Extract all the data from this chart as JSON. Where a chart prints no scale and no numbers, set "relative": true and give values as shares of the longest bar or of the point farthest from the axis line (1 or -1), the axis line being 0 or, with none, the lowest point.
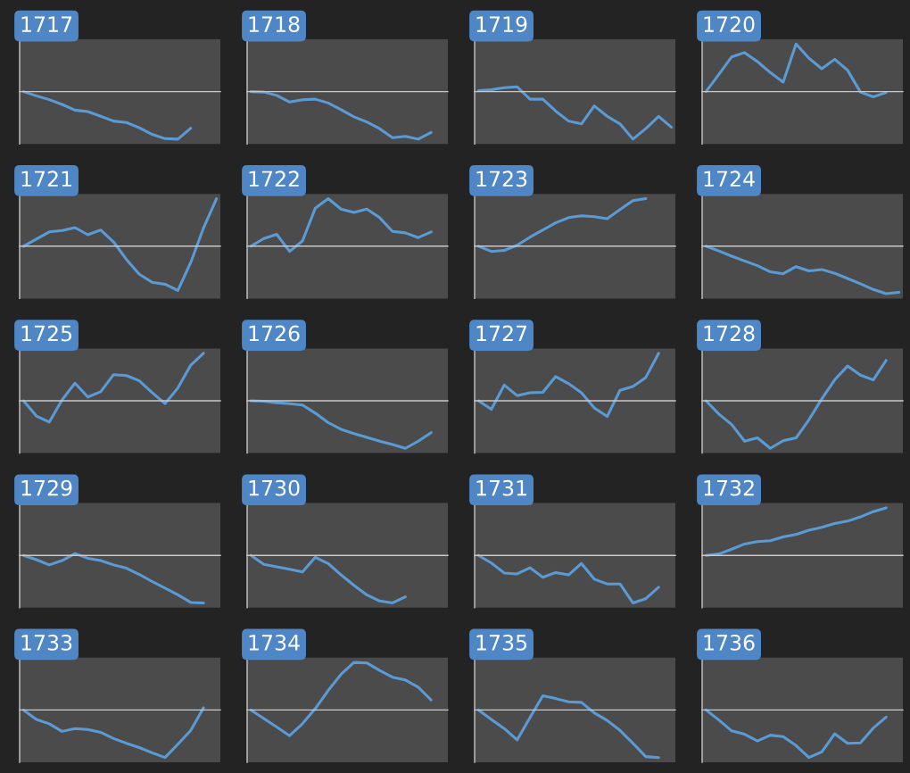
{
  "chart_data": [
    {
      "type": "line",
      "title": "1717",
      "categories": [
        null,
        null,
        null,
        null,
        null,
        null,
        null,
        null,
        null,
        null,
        null,
        null,
        null,
        null,
        null,
        null
      ],
      "relative": true,
      "series": [
        {
          "color": "#5b9bd5",
          "values": [
            0,
            -0.09,
            -0.17,
            -0.27,
            -0.39,
            -0.42,
            -0.52,
            -0.62,
            -0.65,
            -0.76,
            -0.9,
            -0.99,
            -1,
            -0.77,
            null,
            null
          ]
        }
      ]
    },
    {
      "type": "line",
      "title": "1718",
      "categories": [
        null,
        null,
        null,
        null,
        null,
        null,
        null,
        null,
        null,
        null,
        null,
        null,
        null,
        null,
        null,
        null
      ],
      "relative": true,
      "series": [
        {
          "color": "#5b9bd5",
          "values": [
            0,
            -0.01,
            -0.08,
            -0.22,
            -0.17,
            -0.16,
            -0.24,
            -0.38,
            -0.53,
            -0.64,
            -0.78,
            -0.97,
            -0.94,
            -1,
            -0.86,
            null
          ]
        }
      ]
    },
    {
      "type": "line",
      "title": "1719",
      "categories": [
        null,
        null,
        null,
        null,
        null,
        null,
        null,
        null,
        null,
        null,
        null,
        null,
        null,
        null,
        null,
        null
      ],
      "relative": true,
      "series": [
        {
          "color": "#5b9bd5",
          "values": [
            0.02,
            0.04,
            0.08,
            0.1,
            -0.16,
            -0.16,
            -0.41,
            -0.62,
            -0.68,
            -0.3,
            -0.52,
            -0.68,
            -1,
            -0.78,
            -0.52,
            -0.75
          ]
        }
      ]
    },
    {
      "type": "line",
      "title": "1720",
      "categories": [
        null,
        null,
        null,
        null,
        null,
        null,
        null,
        null,
        null,
        null,
        null,
        null,
        null,
        null,
        null,
        null
      ],
      "relative": true,
      "series": [
        {
          "color": "#5b9bd5",
          "values": [
            0,
            0.36,
            0.73,
            0.82,
            0.63,
            0.4,
            0.2,
            1,
            0.7,
            0.48,
            0.68,
            0.45,
            -0.01,
            -0.11,
            -0.02,
            null
          ]
        }
      ]
    },
    {
      "type": "line",
      "title": "1721",
      "categories": [
        null,
        null,
        null,
        null,
        null,
        null,
        null,
        null,
        null,
        null,
        null,
        null,
        null,
        null,
        null,
        null
      ],
      "relative": true,
      "series": [
        {
          "color": "#5b9bd5",
          "values": [
            0,
            0.15,
            0.3,
            0.33,
            0.39,
            0.24,
            0.34,
            0.09,
            -0.28,
            -0.59,
            -0.76,
            -0.8,
            -0.93,
            -0.34,
            0.39,
            1
          ]
        }
      ]
    },
    {
      "type": "line",
      "title": "1722",
      "categories": [
        null,
        null,
        null,
        null,
        null,
        null,
        null,
        null,
        null,
        null,
        null,
        null,
        null,
        null,
        null,
        null
      ],
      "relative": true,
      "series": [
        {
          "color": "#5b9bd5",
          "values": [
            0,
            0.16,
            0.25,
            -0.11,
            0.11,
            0.8,
            1,
            0.78,
            0.71,
            0.78,
            0.6,
            0.31,
            0.28,
            0.18,
            0.3,
            null
          ]
        }
      ]
    },
    {
      "type": "line",
      "title": "1723",
      "categories": [
        null,
        null,
        null,
        null,
        null,
        null,
        null,
        null,
        null,
        null,
        null,
        null,
        null,
        null,
        null,
        null
      ],
      "relative": true,
      "series": [
        {
          "color": "#5b9bd5",
          "values": [
            0,
            -0.11,
            -0.09,
            0.02,
            0.19,
            0.34,
            0.49,
            0.6,
            0.64,
            0.62,
            0.58,
            0.77,
            0.96,
            1,
            null,
            null
          ]
        }
      ]
    },
    {
      "type": "line",
      "title": "1724",
      "categories": [
        null,
        null,
        null,
        null,
        null,
        null,
        null,
        null,
        null,
        null,
        null,
        null,
        null,
        null,
        null,
        null
      ],
      "relative": true,
      "series": [
        {
          "color": "#5b9bd5",
          "values": [
            0,
            -0.1,
            -0.21,
            -0.31,
            -0.41,
            -0.54,
            -0.58,
            -0.43,
            -0.52,
            -0.49,
            -0.57,
            -0.68,
            -0.79,
            -0.91,
            -1,
            -0.97
          ]
        }
      ]
    },
    {
      "type": "line",
      "title": "1725",
      "categories": [
        null,
        null,
        null,
        null,
        null,
        null,
        null,
        null,
        null,
        null,
        null,
        null,
        null,
        null,
        null,
        null
      ],
      "relative": true,
      "series": [
        {
          "color": "#5b9bd5",
          "values": [
            0,
            -0.32,
            -0.45,
            0.02,
            0.37,
            0.08,
            0.19,
            0.55,
            0.53,
            0.42,
            0.17,
            -0.06,
            0.27,
            0.75,
            1,
            null
          ]
        }
      ]
    },
    {
      "type": "line",
      "title": "1726",
      "categories": [
        null,
        null,
        null,
        null,
        null,
        null,
        null,
        null,
        null,
        null,
        null,
        null,
        null,
        null,
        null,
        null
      ],
      "relative": true,
      "series": [
        {
          "color": "#5b9bd5",
          "values": [
            0,
            -0.01,
            -0.04,
            -0.06,
            -0.09,
            -0.26,
            -0.46,
            -0.6,
            -0.69,
            -0.77,
            -0.85,
            -0.92,
            -1,
            -0.85,
            -0.67,
            null
          ]
        }
      ]
    },
    {
      "type": "line",
      "title": "1727",
      "categories": [
        null,
        null,
        null,
        null,
        null,
        null,
        null,
        null,
        null,
        null,
        null,
        null,
        null,
        null,
        null,
        null
      ],
      "relative": true,
      "series": [
        {
          "color": "#5b9bd5",
          "values": [
            0,
            -0.18,
            0.33,
            0.11,
            0.17,
            0.18,
            0.51,
            0.36,
            0.17,
            -0.15,
            -0.33,
            0.22,
            0.3,
            0.49,
            1,
            null
          ]
        }
      ]
    },
    {
      "type": "line",
      "title": "1728",
      "categories": [
        null,
        null,
        null,
        null,
        null,
        null,
        null,
        null,
        null,
        null,
        null,
        null,
        null,
        null,
        null,
        null
      ],
      "relative": true,
      "series": [
        {
          "color": "#5b9bd5",
          "values": [
            0,
            -0.28,
            -0.5,
            -0.85,
            -0.78,
            -1,
            -0.84,
            -0.78,
            -0.4,
            0.04,
            0.44,
            0.73,
            0.54,
            0.44,
            0.85,
            null
          ]
        }
      ]
    },
    {
      "type": "line",
      "title": "1729",
      "categories": [
        null,
        null,
        null,
        null,
        null,
        null,
        null,
        null,
        null,
        null,
        null,
        null,
        null,
        null,
        null,
        null
      ],
      "relative": true,
      "series": [
        {
          "color": "#5b9bd5",
          "values": [
            0,
            -0.09,
            -0.2,
            -0.11,
            0.04,
            -0.06,
            -0.11,
            -0.2,
            -0.27,
            -0.4,
            -0.55,
            -0.69,
            -0.83,
            -0.99,
            -1,
            null
          ]
        }
      ]
    },
    {
      "type": "line",
      "title": "1730",
      "categories": [
        null,
        null,
        null,
        null,
        null,
        null,
        null,
        null,
        null,
        null,
        null,
        null,
        null,
        null,
        null,
        null
      ],
      "relative": true,
      "series": [
        {
          "color": "#5b9bd5",
          "values": [
            0,
            -0.19,
            -0.24,
            -0.29,
            -0.35,
            -0.04,
            -0.17,
            -0.41,
            -0.63,
            -0.83,
            -0.96,
            -1,
            -0.87,
            null,
            null,
            null
          ]
        }
      ]
    },
    {
      "type": "line",
      "title": "1731",
      "categories": [
        null,
        null,
        null,
        null,
        null,
        null,
        null,
        null,
        null,
        null,
        null,
        null,
        null,
        null,
        null,
        null
      ],
      "relative": true,
      "series": [
        {
          "color": "#5b9bd5",
          "values": [
            0,
            -0.16,
            -0.37,
            -0.39,
            -0.26,
            -0.46,
            -0.36,
            -0.41,
            -0.17,
            -0.5,
            -0.6,
            -0.6,
            -1,
            -0.91,
            -0.67,
            null
          ]
        }
      ]
    },
    {
      "type": "line",
      "title": "1732",
      "categories": [
        null,
        null,
        null,
        null,
        null,
        null,
        null,
        null,
        null,
        null,
        null,
        null,
        null,
        null,
        null,
        null
      ],
      "relative": true,
      "series": [
        {
          "color": "#5b9bd5",
          "values": [
            0,
            0.03,
            0.13,
            0.24,
            0.29,
            0.31,
            0.39,
            0.44,
            0.53,
            0.59,
            0.67,
            0.72,
            0.81,
            0.92,
            1,
            null
          ]
        }
      ]
    },
    {
      "type": "line",
      "title": "1733",
      "categories": [
        null,
        null,
        null,
        null,
        null,
        null,
        null,
        null,
        null,
        null,
        null,
        null,
        null,
        null,
        null,
        null
      ],
      "relative": true,
      "series": [
        {
          "color": "#5b9bd5",
          "values": [
            0,
            -0.2,
            -0.29,
            -0.45,
            -0.39,
            -0.41,
            -0.47,
            -0.6,
            -0.7,
            -0.79,
            -0.9,
            -1,
            -0.72,
            -0.43,
            0.05,
            null
          ]
        }
      ]
    },
    {
      "type": "line",
      "title": "1734",
      "categories": [
        null,
        null,
        null,
        null,
        null,
        null,
        null,
        null,
        null,
        null,
        null,
        null,
        null,
        null,
        null,
        null
      ],
      "relative": true,
      "series": [
        {
          "color": "#5b9bd5",
          "values": [
            0,
            -0.18,
            -0.36,
            -0.54,
            -0.29,
            0.03,
            0.41,
            0.75,
            1,
            0.99,
            0.83,
            0.69,
            0.63,
            0.48,
            0.21,
            null
          ]
        }
      ]
    },
    {
      "type": "line",
      "title": "1735",
      "categories": [
        null,
        null,
        null,
        null,
        null,
        null,
        null,
        null,
        null,
        null,
        null,
        null,
        null,
        null,
        null,
        null
      ],
      "relative": true,
      "series": [
        {
          "color": "#5b9bd5",
          "values": [
            0,
            -0.2,
            -0.39,
            -0.63,
            -0.16,
            0.3,
            0.24,
            0.17,
            0.16,
            -0.06,
            -0.22,
            -0.43,
            -0.7,
            -0.98,
            -1,
            null
          ]
        }
      ]
    },
    {
      "type": "line",
      "title": "1736",
      "categories": [
        null,
        null,
        null,
        null,
        null,
        null,
        null,
        null,
        null,
        null,
        null,
        null,
        null,
        null,
        null,
        null
      ],
      "relative": true,
      "series": [
        {
          "color": "#5b9bd5",
          "values": [
            0,
            -0.21,
            -0.44,
            -0.51,
            -0.65,
            -0.53,
            -0.56,
            -0.75,
            -1,
            -0.88,
            -0.5,
            -0.7,
            -0.69,
            -0.38,
            -0.15,
            null
          ]
        }
      ]
    }
  ]
}
